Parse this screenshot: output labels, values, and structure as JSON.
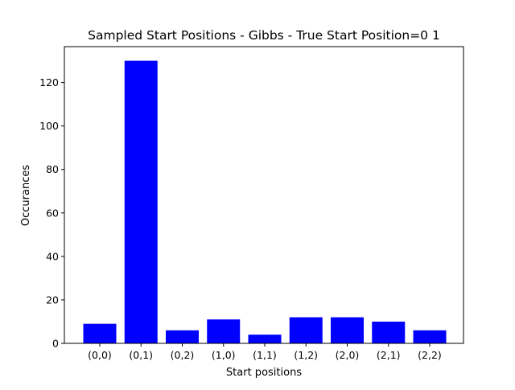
{
  "chart_data": {
    "type": "bar",
    "title": "Sampled Start Positions - Gibbs - True Start Position=0 1",
    "xlabel": "Start positions",
    "ylabel": "Occurances",
    "categories": [
      "(0,0)",
      "(0,1)",
      "(0,2)",
      "(1,0)",
      "(1,1)",
      "(1,2)",
      "(2,0)",
      "(2,1)",
      "(2,2)"
    ],
    "values": [
      9,
      130,
      6,
      11,
      4,
      12,
      12,
      10,
      6
    ],
    "ylim": [
      0,
      136.5
    ],
    "yticks": [
      0,
      20,
      40,
      60,
      80,
      100,
      120
    ],
    "bar_color": "#0000ff",
    "grid": false,
    "legend": "none"
  }
}
